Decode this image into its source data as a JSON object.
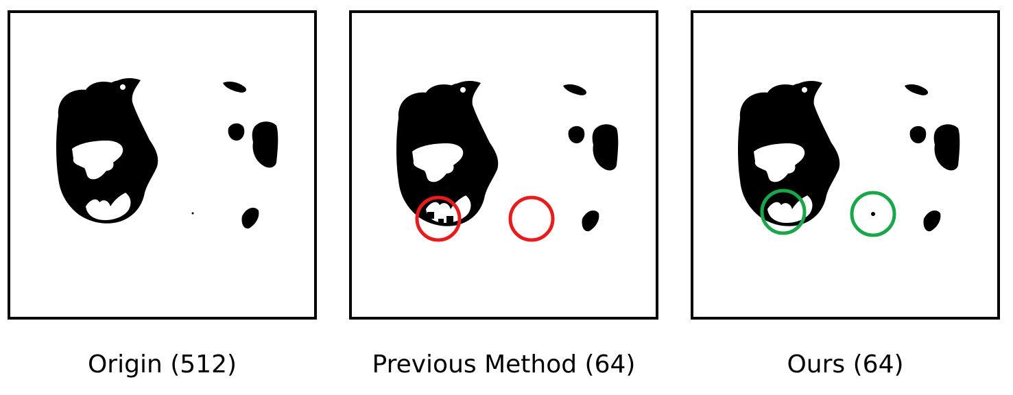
{
  "panels": [
    {
      "caption": "Origin (512)",
      "marker_color": ""
    },
    {
      "caption": "Previous Method (64)",
      "marker_color": "#e81c1c"
    },
    {
      "caption": "Ours (64)",
      "marker_color": "#1aa64a"
    }
  ]
}
